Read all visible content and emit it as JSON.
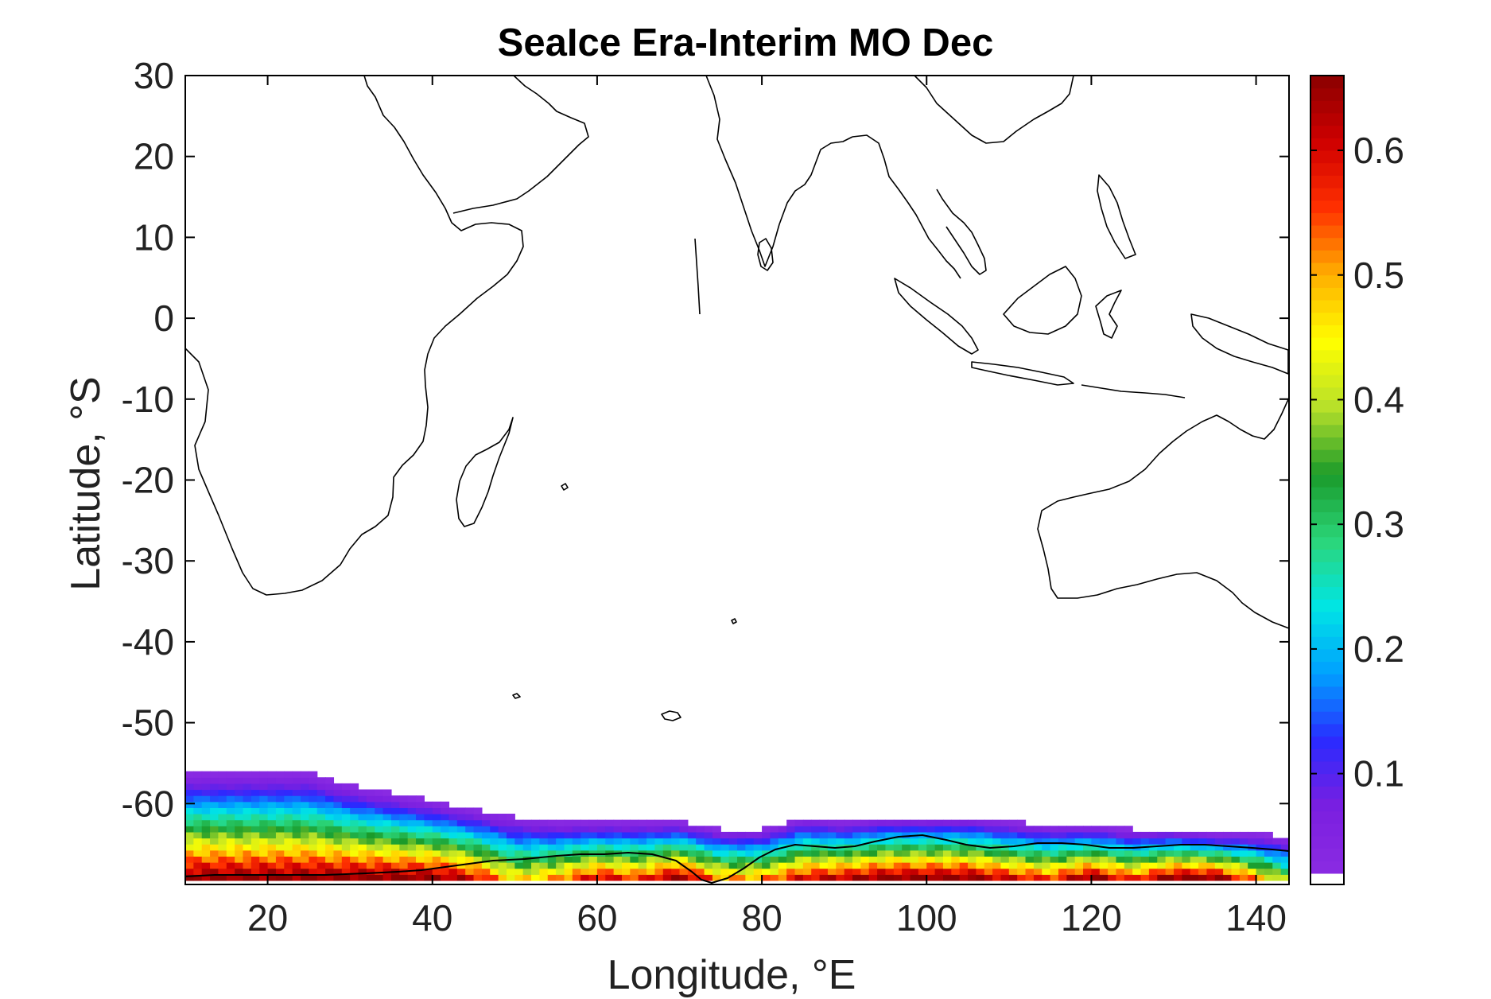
{
  "chart_data": {
    "type": "heatmap",
    "title": "SeaIce Era-Interim MO Dec",
    "xlabel": "Longitude, °E",
    "ylabel": "Latitude, °S",
    "xlim": [
      10,
      144
    ],
    "ylim": [
      -70,
      30
    ],
    "x_ticks": [
      20,
      40,
      60,
      80,
      100,
      120,
      140
    ],
    "y_ticks": [
      30,
      20,
      10,
      0,
      -10,
      -20,
      -30,
      -40,
      -50,
      -60
    ],
    "colorbar": {
      "range": [
        0.02,
        0.66
      ],
      "ticks": [
        0.1,
        0.2,
        0.3,
        0.4,
        0.5,
        0.6
      ],
      "colormap": [
        "#ffffff",
        "#8a2be2",
        "#7a1fe0",
        "#2a2aff",
        "#00a0ff",
        "#00e5e5",
        "#2bd67a",
        "#1a9a2a",
        "#b6e02a",
        "#ffff00",
        "#ffb000",
        "#ff3000",
        "#d00000",
        "#8b0000"
      ]
    },
    "sea_ice_concentration_profile": {
      "longitude": [
        10,
        15,
        20,
        25,
        30,
        35,
        40,
        45,
        50,
        55,
        60,
        65,
        70,
        75,
        80,
        85,
        90,
        95,
        100,
        105,
        110,
        115,
        120,
        125,
        130,
        135,
        140,
        144
      ],
      "northern_ice_edge_lat": [
        -56.5,
        -56.5,
        -56.5,
        -56.5,
        -58,
        -59,
        -60,
        -61,
        -62,
        -62.5,
        -62.5,
        -62.5,
        -62.5,
        -63.5,
        -63.5,
        -62,
        -62.5,
        -62,
        -62,
        -62,
        -62.5,
        -63,
        -63,
        -63.5,
        -63.5,
        -64,
        -64,
        -64.5
      ],
      "coastal_max_concentration": [
        0.66,
        0.66,
        0.66,
        0.66,
        0.66,
        0.66,
        0.66,
        0.6,
        0.45,
        0.5,
        0.6,
        0.55,
        0.66,
        0.5,
        0.5,
        0.6,
        0.62,
        0.66,
        0.66,
        0.66,
        0.6,
        0.55,
        0.66,
        0.55,
        0.66,
        0.66,
        0.5,
        0.35
      ]
    }
  }
}
